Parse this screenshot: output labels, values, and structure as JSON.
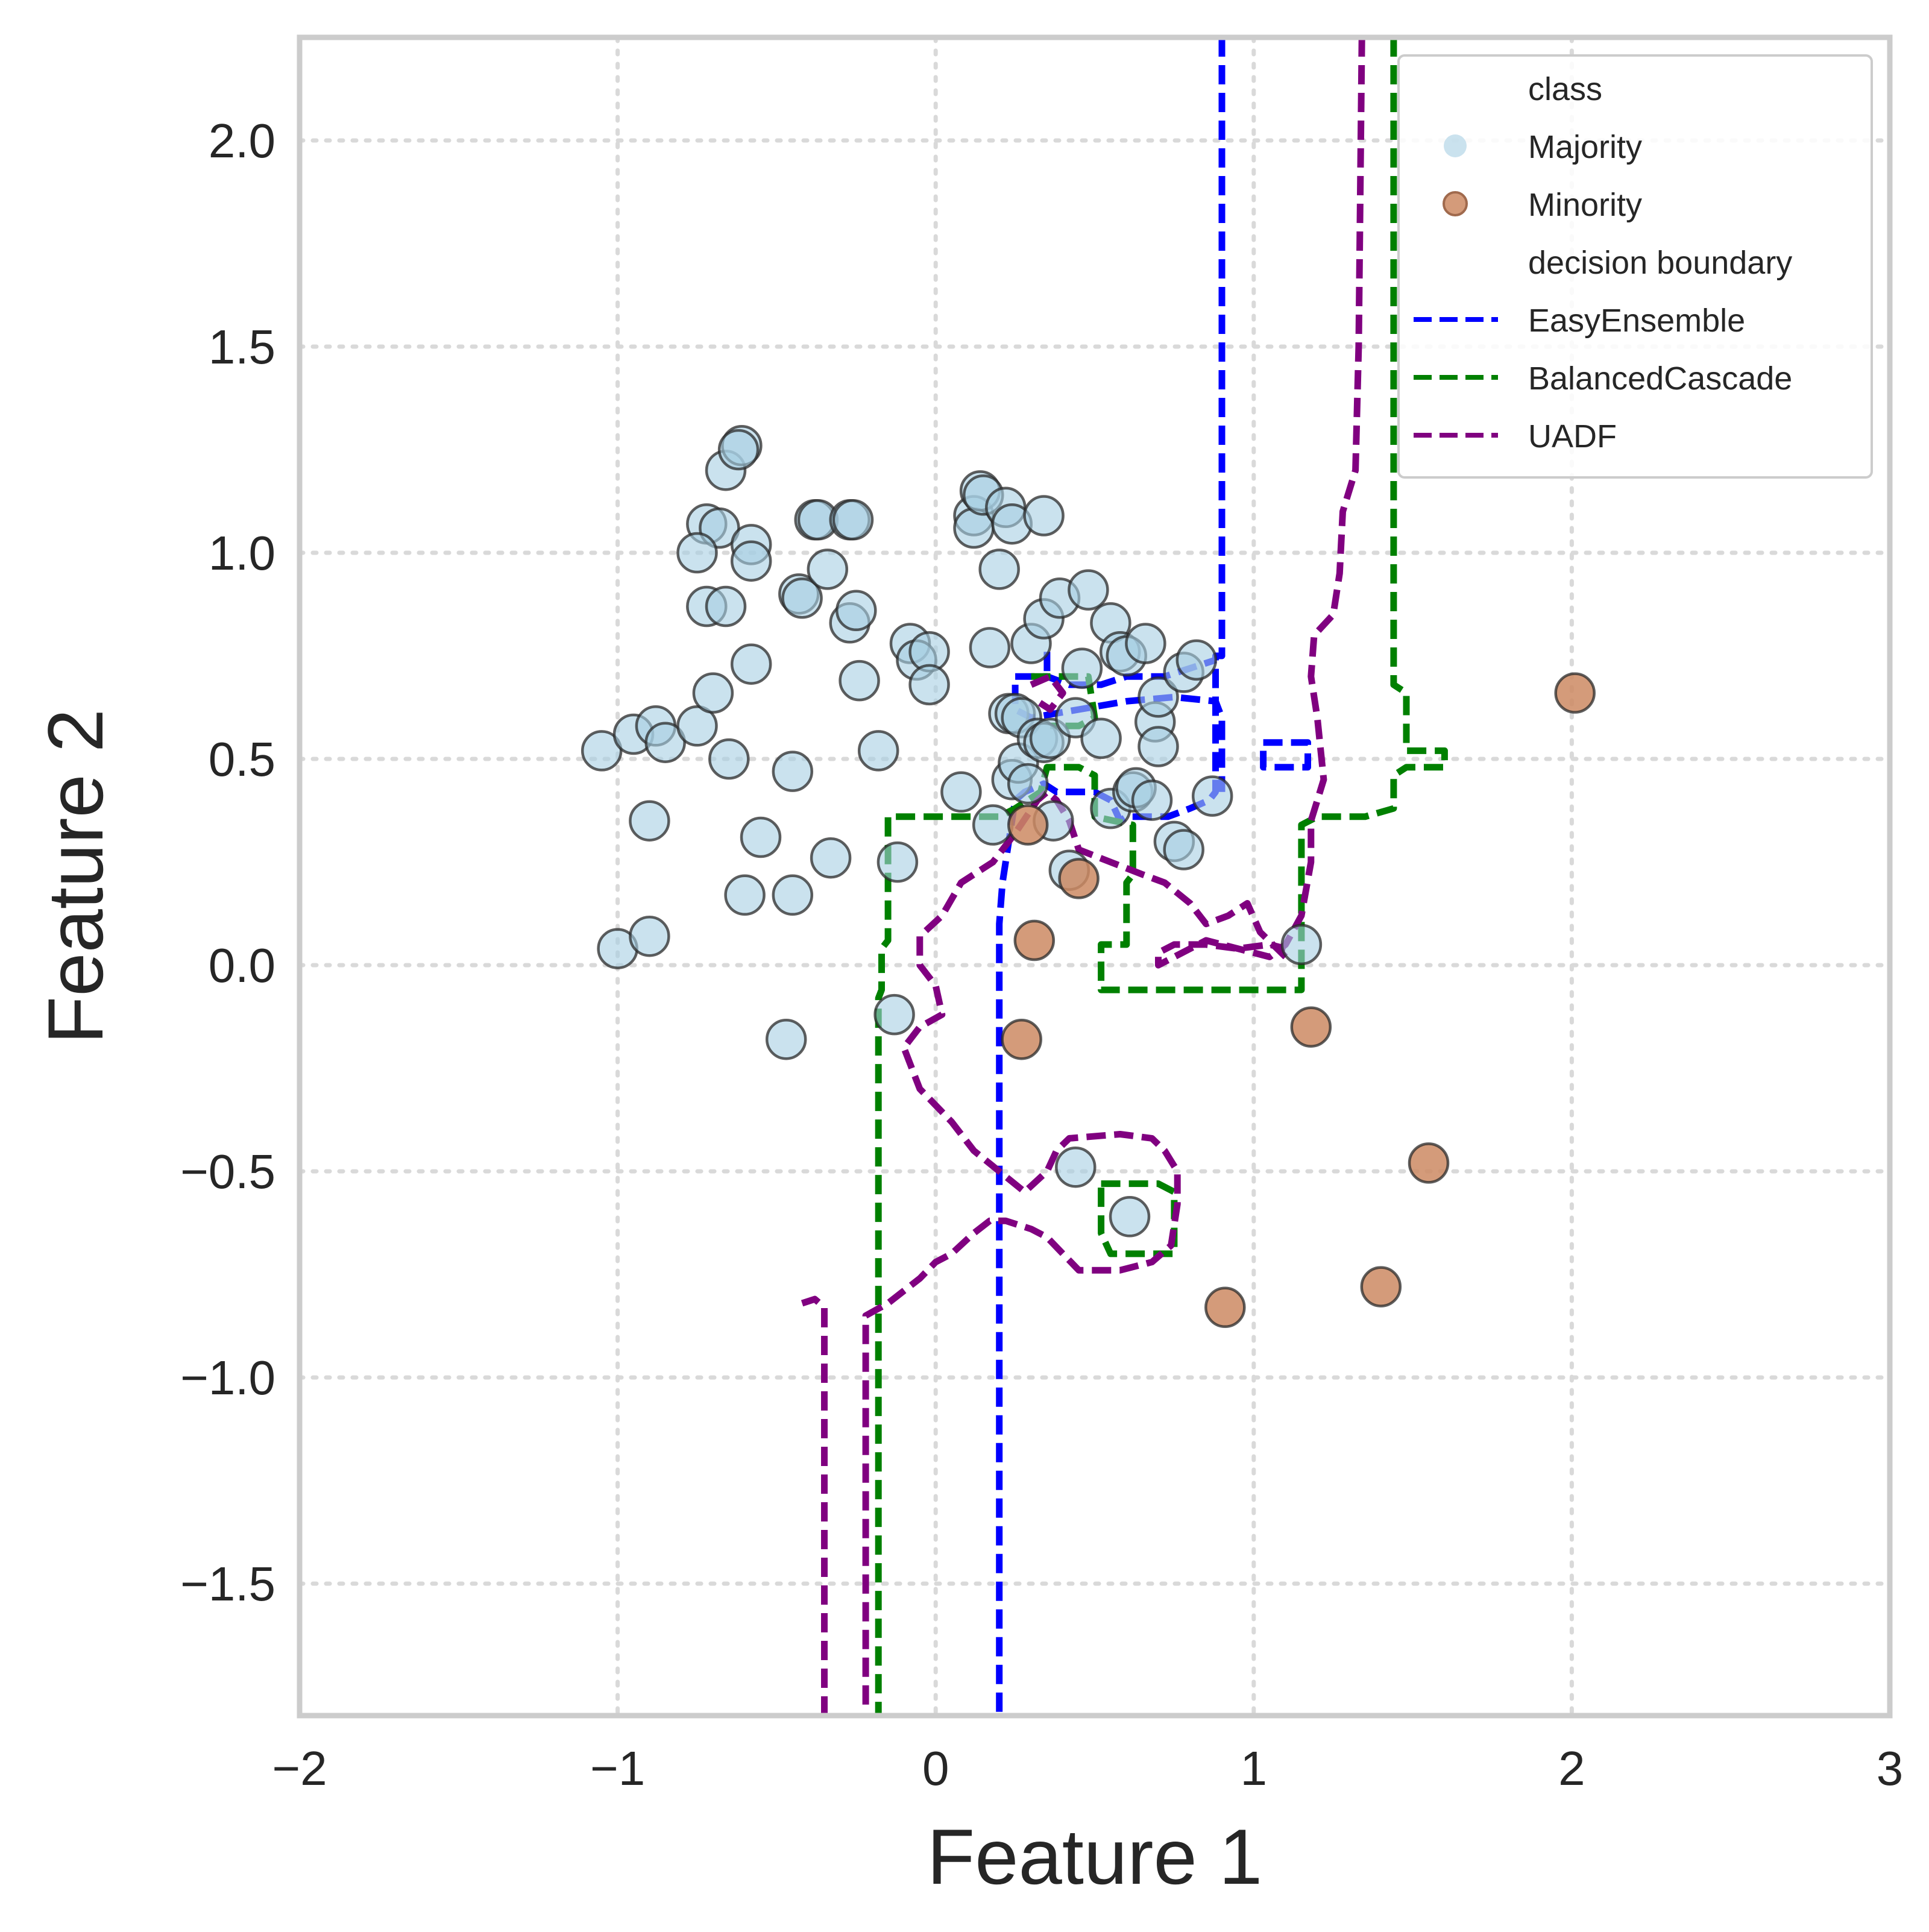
{
  "chart_data": {
    "type": "scatter",
    "title": "",
    "xlabel": "Feature 1",
    "ylabel": "Feature 2",
    "xlim": [
      -2,
      3
    ],
    "ylim": [
      -1.82,
      2.25
    ],
    "xticks": [
      -2,
      -1,
      0,
      1,
      2,
      3
    ],
    "xtick_labels": [
      "−2",
      "−1",
      "0",
      "1",
      "2",
      "3"
    ],
    "yticks": [
      -1.5,
      -1.0,
      -0.5,
      0.0,
      0.5,
      1.0,
      1.5,
      2.0
    ],
    "ytick_labels": [
      "−1.5",
      "−1.0",
      "−0.5",
      "0.0",
      "0.5",
      "1.0",
      "1.5",
      "2.0"
    ],
    "grid": true,
    "grid_style": "dotted",
    "legend_position": "top-right",
    "legend": {
      "class_header": "class",
      "boundary_header": "decision boundary"
    },
    "series": [
      {
        "name": "Majority",
        "color": "#a6cee3",
        "points": [
          [
            -1.05,
            0.52
          ],
          [
            -0.95,
            0.56
          ],
          [
            -0.88,
            0.58
          ],
          [
            -0.85,
            0.54
          ],
          [
            -0.9,
            0.35
          ],
          [
            -1.0,
            0.04
          ],
          [
            -0.9,
            0.07
          ],
          [
            -0.75,
            0.58
          ],
          [
            -0.7,
            0.66
          ],
          [
            -0.65,
            0.5
          ],
          [
            -0.72,
            1.07
          ],
          [
            -0.68,
            1.06
          ],
          [
            -0.75,
            1.0
          ],
          [
            -0.72,
            0.87
          ],
          [
            -0.66,
            0.87
          ],
          [
            -0.66,
            1.2
          ],
          [
            -0.61,
            1.26
          ],
          [
            -0.62,
            1.25
          ],
          [
            -0.58,
            1.02
          ],
          [
            -0.58,
            0.98
          ],
          [
            -0.58,
            0.73
          ],
          [
            -0.6,
            0.17
          ],
          [
            -0.55,
            0.31
          ],
          [
            -0.45,
            0.47
          ],
          [
            -0.45,
            0.17
          ],
          [
            -0.43,
            0.9
          ],
          [
            -0.42,
            0.89
          ],
          [
            -0.38,
            1.08
          ],
          [
            -0.37,
            1.08
          ],
          [
            -0.34,
            0.96
          ],
          [
            -0.33,
            0.26
          ],
          [
            -0.27,
            1.08
          ],
          [
            -0.26,
            1.08
          ],
          [
            -0.27,
            0.83
          ],
          [
            -0.25,
            0.86
          ],
          [
            -0.24,
            0.69
          ],
          [
            -0.18,
            0.52
          ],
          [
            -0.12,
            0.25
          ],
          [
            -0.13,
            -0.12
          ],
          [
            -0.08,
            0.78
          ],
          [
            -0.06,
            0.74
          ],
          [
            -0.02,
            0.76
          ],
          [
            -0.02,
            0.68
          ],
          [
            0.08,
            0.42
          ],
          [
            0.12,
            1.09
          ],
          [
            0.12,
            1.06
          ],
          [
            0.14,
            1.15
          ],
          [
            0.15,
            1.14
          ],
          [
            0.17,
            0.77
          ],
          [
            0.18,
            0.34
          ],
          [
            0.2,
            0.96
          ],
          [
            0.22,
            1.11
          ],
          [
            0.24,
            1.07
          ],
          [
            0.23,
            0.61
          ],
          [
            0.25,
            0.61
          ],
          [
            0.27,
            0.6
          ],
          [
            0.24,
            0.45
          ],
          [
            0.26,
            0.49
          ],
          [
            0.29,
            0.44
          ],
          [
            0.3,
            0.78
          ],
          [
            0.34,
            1.09
          ],
          [
            0.34,
            0.84
          ],
          [
            0.32,
            0.55
          ],
          [
            0.34,
            0.54
          ],
          [
            0.36,
            0.55
          ],
          [
            0.37,
            0.35
          ],
          [
            0.39,
            0.89
          ],
          [
            0.42,
            0.23
          ],
          [
            0.44,
            0.6
          ],
          [
            0.46,
            0.72
          ],
          [
            0.48,
            0.91
          ],
          [
            0.52,
            0.55
          ],
          [
            0.55,
            0.38
          ],
          [
            0.55,
            0.83
          ],
          [
            0.58,
            0.76
          ],
          [
            0.6,
            0.75
          ],
          [
            0.62,
            0.42
          ],
          [
            0.63,
            0.43
          ],
          [
            0.66,
            0.78
          ],
          [
            0.68,
            0.4
          ],
          [
            0.69,
            0.59
          ],
          [
            0.7,
            0.65
          ],
          [
            0.7,
            0.53
          ],
          [
            0.75,
            0.3
          ],
          [
            0.78,
            0.28
          ],
          [
            0.78,
            0.71
          ],
          [
            0.82,
            0.74
          ],
          [
            0.87,
            0.41
          ],
          [
            1.15,
            0.05
          ],
          [
            0.44,
            -0.49
          ],
          [
            0.61,
            -0.61
          ],
          [
            -0.47,
            -0.18
          ]
        ]
      },
      {
        "name": "Minority",
        "color": "#cc8963",
        "points": [
          [
            0.29,
            0.34
          ],
          [
            0.45,
            0.21
          ],
          [
            0.31,
            0.06
          ],
          [
            0.27,
            -0.18
          ],
          [
            1.18,
            -0.15
          ],
          [
            2.01,
            0.66
          ],
          [
            1.55,
            -0.48
          ],
          [
            1.4,
            -0.78
          ],
          [
            0.91,
            -0.83
          ]
        ]
      }
    ],
    "boundaries": [
      {
        "name": "EasyEnsemble",
        "color": "#0000ff",
        "paths": [
          [
            [
              0.9,
              2.25
            ],
            [
              0.9,
              0.75
            ],
            [
              0.88,
              0.75
            ],
            [
              0.88,
              0.42
            ],
            [
              0.86,
              0.4
            ],
            [
              0.8,
              0.38
            ],
            [
              0.73,
              0.36
            ],
            [
              0.6,
              0.36
            ],
            [
              0.58,
              0.35
            ],
            [
              0.55,
              0.4
            ],
            [
              0.5,
              0.42
            ],
            [
              0.38,
              0.42
            ],
            [
              0.34,
              0.44
            ],
            [
              0.28,
              0.42
            ],
            [
              0.25,
              0.4
            ],
            [
              0.23,
              0.3
            ],
            [
              0.21,
              0.2
            ],
            [
              0.2,
              0.1
            ],
            [
              0.2,
              -1.82
            ]
          ],
          [
            [
              0.25,
              0.7
            ],
            [
              0.35,
              0.7
            ],
            [
              0.42,
              0.68
            ],
            [
              0.52,
              0.68
            ],
            [
              0.6,
              0.7
            ],
            [
              0.72,
              0.7
            ],
            [
              0.8,
              0.72
            ],
            [
              0.88,
              0.74
            ]
          ],
          [
            [
              0.25,
              0.68
            ],
            [
              0.25,
              0.62
            ],
            [
              0.3,
              0.6
            ],
            [
              0.45,
              0.62
            ],
            [
              0.6,
              0.64
            ],
            [
              0.75,
              0.65
            ],
            [
              0.88,
              0.64
            ],
            [
              0.9,
              0.6
            ],
            [
              0.9,
              0.42
            ]
          ],
          [
            [
              0.35,
              0.76
            ],
            [
              0.35,
              0.7
            ]
          ],
          [
            [
              1.03,
              0.54
            ],
            [
              1.17,
              0.54
            ],
            [
              1.17,
              0.48
            ],
            [
              1.03,
              0.48
            ],
            [
              1.03,
              0.54
            ]
          ]
        ]
      },
      {
        "name": "BalancedCascade",
        "color": "#008000",
        "paths": [
          [
            [
              1.44,
              2.25
            ],
            [
              1.44,
              0.68
            ],
            [
              1.48,
              0.66
            ],
            [
              1.48,
              0.52
            ],
            [
              1.6,
              0.52
            ],
            [
              1.6,
              0.48
            ],
            [
              1.48,
              0.48
            ],
            [
              1.44,
              0.46
            ],
            [
              1.44,
              0.38
            ],
            [
              1.35,
              0.36
            ],
            [
              1.2,
              0.36
            ],
            [
              1.15,
              0.34
            ],
            [
              1.15,
              -0.06
            ],
            [
              0.52,
              -0.06
            ],
            [
              0.52,
              0.05
            ],
            [
              0.6,
              0.05
            ],
            [
              0.6,
              0.2
            ],
            [
              0.62,
              0.22
            ],
            [
              0.62,
              0.34
            ],
            [
              0.5,
              0.36
            ],
            [
              0.5,
              0.46
            ],
            [
              0.45,
              0.48
            ],
            [
              0.35,
              0.48
            ],
            [
              0.33,
              0.42
            ],
            [
              0.25,
              0.38
            ],
            [
              0.2,
              0.36
            ],
            [
              -0.15,
              0.36
            ],
            [
              -0.15,
              0.06
            ],
            [
              -0.17,
              0.04
            ],
            [
              -0.17,
              -0.06
            ],
            [
              -0.18,
              -0.08
            ],
            [
              -0.18,
              -1.82
            ]
          ],
          [
            [
              0.3,
              0.7
            ],
            [
              0.48,
              0.7
            ],
            [
              0.5,
              0.6
            ],
            [
              0.45,
              0.58
            ],
            [
              0.36,
              0.58
            ]
          ],
          [
            [
              0.52,
              -0.53
            ],
            [
              0.7,
              -0.53
            ],
            [
              0.75,
              -0.55
            ],
            [
              0.75,
              -0.7
            ],
            [
              0.55,
              -0.7
            ],
            [
              0.52,
              -0.65
            ],
            [
              0.52,
              -0.53
            ]
          ]
        ]
      },
      {
        "name": "UADF",
        "color": "#800080",
        "paths": [
          [
            [
              1.34,
              2.25
            ],
            [
              1.33,
              1.5
            ],
            [
              1.32,
              1.2
            ],
            [
              1.28,
              1.1
            ],
            [
              1.27,
              0.95
            ],
            [
              1.25,
              0.85
            ],
            [
              1.19,
              0.8
            ],
            [
              1.18,
              0.7
            ],
            [
              1.2,
              0.6
            ],
            [
              1.22,
              0.45
            ],
            [
              1.18,
              0.35
            ],
            [
              1.18,
              0.25
            ],
            [
              1.15,
              0.12
            ],
            [
              1.1,
              0.05
            ],
            [
              1.05,
              0.02
            ],
            [
              0.95,
              0.04
            ],
            [
              0.85,
              0.06
            ],
            [
              0.75,
              0.02
            ],
            [
              0.7,
              0.0
            ],
            [
              0.7,
              0.03
            ],
            [
              0.75,
              0.05
            ],
            [
              0.85,
              0.05
            ],
            [
              0.95,
              0.04
            ],
            [
              1.05,
              0.05
            ],
            [
              1.1,
              0.04
            ]
          ],
          [
            [
              1.1,
              0.02
            ],
            [
              1.02,
              0.08
            ],
            [
              0.98,
              0.15
            ],
            [
              0.92,
              0.12
            ],
            [
              0.85,
              0.1
            ],
            [
              0.8,
              0.15
            ],
            [
              0.72,
              0.2
            ],
            [
              0.65,
              0.22
            ],
            [
              0.55,
              0.25
            ],
            [
              0.45,
              0.28
            ],
            [
              0.42,
              0.35
            ],
            [
              0.38,
              0.4
            ],
            [
              0.35,
              0.42
            ],
            [
              0.32,
              0.4
            ],
            [
              0.25,
              0.32
            ],
            [
              0.18,
              0.25
            ],
            [
              0.08,
              0.2
            ],
            [
              0.02,
              0.12
            ],
            [
              -0.05,
              0.07
            ],
            [
              -0.05,
              0.0
            ],
            [
              0.0,
              -0.05
            ],
            [
              0.02,
              -0.12
            ],
            [
              -0.05,
              -0.15
            ],
            [
              -0.1,
              -0.2
            ],
            [
              -0.05,
              -0.3
            ],
            [
              0.05,
              -0.38
            ],
            [
              0.12,
              -0.45
            ],
            [
              0.2,
              -0.5
            ],
            [
              0.28,
              -0.55
            ],
            [
              0.35,
              -0.5
            ],
            [
              0.38,
              -0.45
            ],
            [
              0.42,
              -0.42
            ],
            [
              0.58,
              -0.41
            ],
            [
              0.68,
              -0.42
            ],
            [
              0.72,
              -0.45
            ],
            [
              0.76,
              -0.5
            ],
            [
              0.76,
              -0.58
            ],
            [
              0.74,
              -0.68
            ],
            [
              0.68,
              -0.72
            ],
            [
              0.58,
              -0.74
            ],
            [
              0.45,
              -0.74
            ],
            [
              0.4,
              -0.7
            ],
            [
              0.35,
              -0.66
            ],
            [
              0.3,
              -0.64
            ],
            [
              0.22,
              -0.62
            ],
            [
              0.17,
              -0.62
            ],
            [
              0.12,
              -0.65
            ],
            [
              0.05,
              -0.7
            ],
            [
              0.0,
              -0.72
            ],
            [
              -0.05,
              -0.76
            ],
            [
              -0.1,
              -0.79
            ],
            [
              -0.15,
              -0.82
            ],
            [
              -0.22,
              -0.85
            ],
            [
              -0.22,
              -1.82
            ]
          ],
          [
            [
              -0.35,
              -1.82
            ],
            [
              -0.35,
              -0.83
            ],
            [
              -0.38,
              -0.81
            ],
            [
              -0.42,
              -0.82
            ]
          ],
          [
            [
              0.3,
              0.68
            ],
            [
              0.36,
              0.7
            ],
            [
              0.4,
              0.66
            ],
            [
              0.36,
              0.62
            ],
            [
              0.32,
              0.64
            ]
          ]
        ]
      }
    ]
  }
}
